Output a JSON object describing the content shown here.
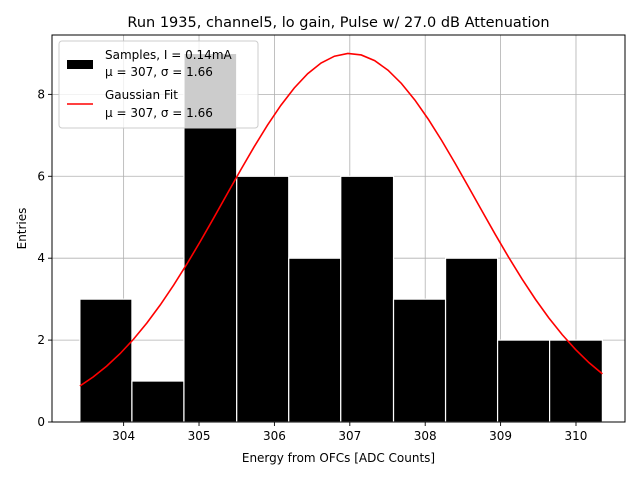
{
  "chart_data": {
    "type": "histogram",
    "title": "Run 1935, channel5, lo gain, Pulse w/ 27.0 dB Attenuation",
    "xlabel": "Energy from OFCs [ADC Counts]",
    "ylabel": "Entries",
    "xlim": [
      303.05,
      310.65
    ],
    "ylim": [
      0,
      9.45
    ],
    "xticks": [
      304,
      305,
      306,
      307,
      308,
      309,
      310
    ],
    "yticks": [
      0,
      2,
      4,
      6,
      8
    ],
    "grid": true,
    "legend_position": "top-left",
    "bins": [
      {
        "left": 303.42,
        "right": 304.11,
        "value": 3
      },
      {
        "left": 304.11,
        "right": 304.8,
        "value": 1
      },
      {
        "left": 304.8,
        "right": 305.5,
        "value": 9
      },
      {
        "left": 305.5,
        "right": 306.19,
        "value": 6
      },
      {
        "left": 306.19,
        "right": 306.88,
        "value": 4
      },
      {
        "left": 306.88,
        "right": 307.58,
        "value": 6
      },
      {
        "left": 307.58,
        "right": 308.27,
        "value": 3
      },
      {
        "left": 308.27,
        "right": 308.96,
        "value": 4
      },
      {
        "left": 308.96,
        "right": 309.65,
        "value": 2
      },
      {
        "left": 309.65,
        "right": 310.35,
        "value": 2
      }
    ],
    "fit": {
      "mu": 307.0,
      "sigma": 1.66,
      "amplitude": 9.0,
      "x_range": [
        303.42,
        310.35
      ],
      "points": 40
    },
    "legend": [
      {
        "line1": "Samples, I = 0.14mA",
        "line2": "μ = 307, σ = 1.66",
        "color": "#000000",
        "kind": "patch"
      },
      {
        "line1": "Gaussian Fit",
        "line2": "μ = 307, σ = 1.66",
        "color": "#ff0000",
        "kind": "line"
      }
    ],
    "colors": {
      "bars": "#000000",
      "bar_edge": "#ffffff",
      "fit": "#ff0000",
      "grid": "#b0b0b0"
    }
  }
}
